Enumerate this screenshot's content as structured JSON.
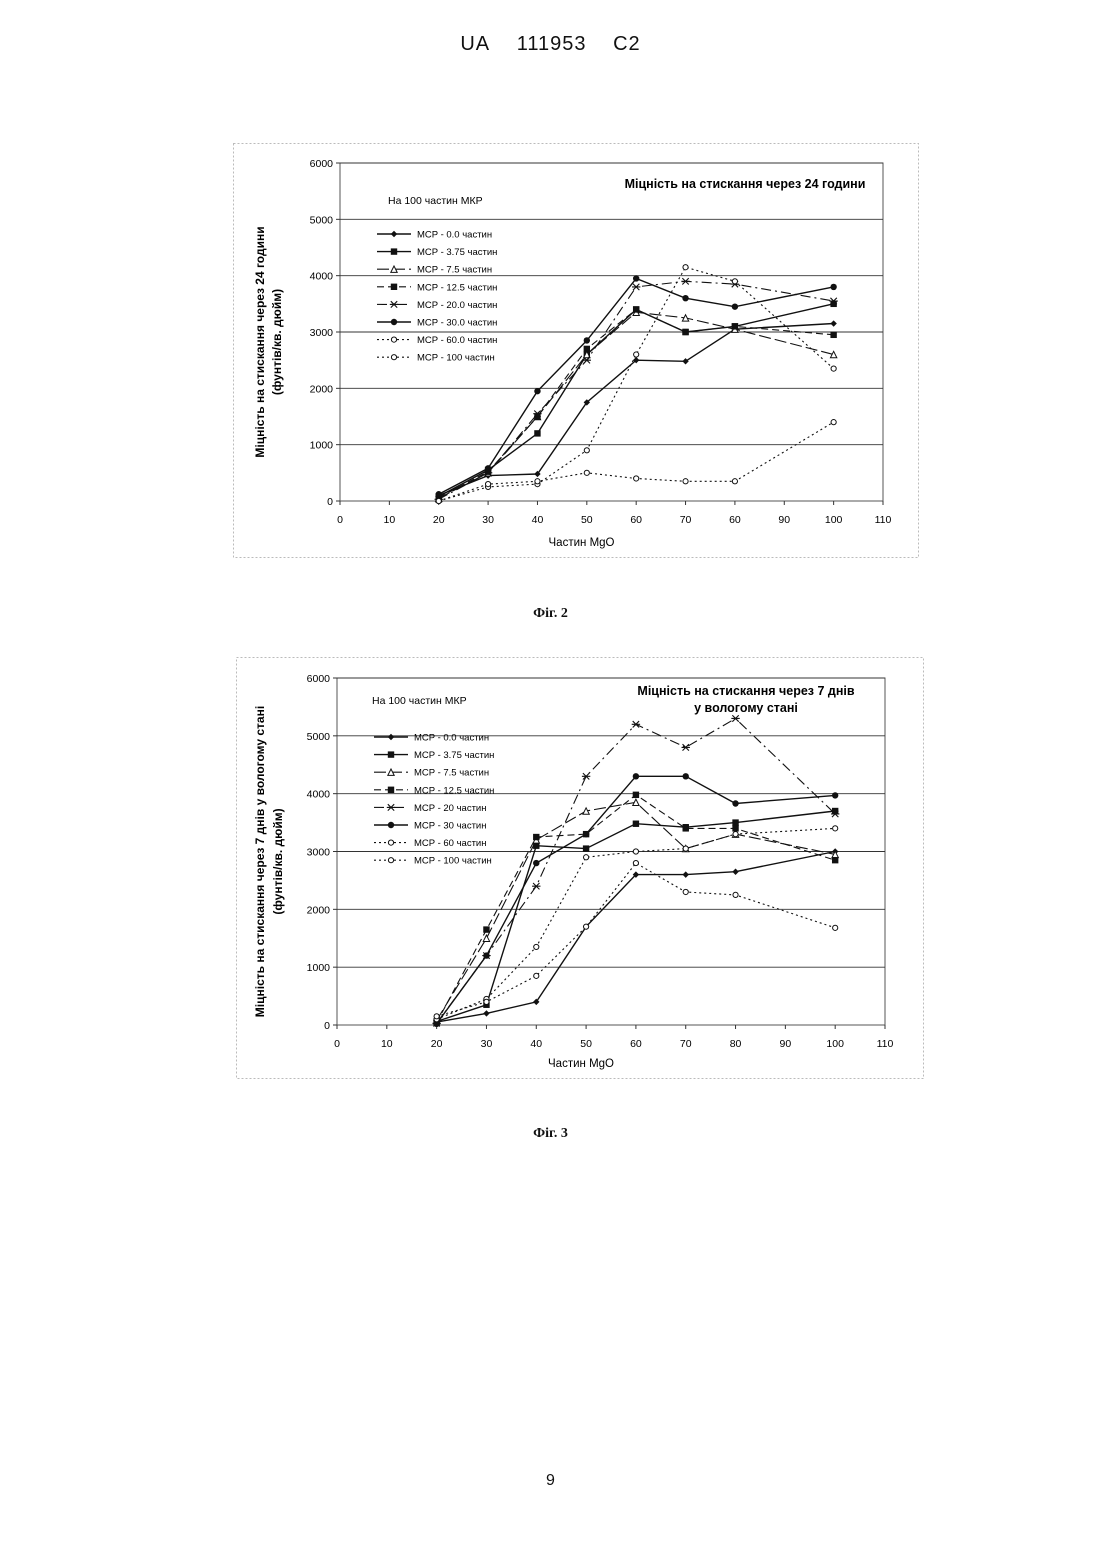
{
  "header": {
    "country": "UA",
    "number": "111953",
    "kind": "C2"
  },
  "figures": [
    {
      "caption": "Фіг. 2"
    },
    {
      "caption": "Фіг. 3"
    }
  ],
  "page_number": "9",
  "chart_data": [
    {
      "type": "line",
      "title": "Міцність на стискання через 24 години",
      "subtitle": "На 100 частин МКР",
      "xlabel": "Частин MgO",
      "ylabel_line1": "Міцність на стискання через 24 години",
      "ylabel_line2": "(фунтів/кв. дюйм)",
      "xlim": [
        0,
        110
      ],
      "ylim": [
        0,
        6000
      ],
      "x_ticks": [
        "0",
        "10",
        "20",
        "30",
        "40",
        "50",
        "60",
        "70",
        "60",
        "90",
        "100",
        "110"
      ],
      "y_ticks": [
        "0",
        "1000",
        "2000",
        "3000",
        "4000",
        "5000",
        "6000"
      ],
      "grid": "horizontal",
      "legend_position": "top-left",
      "series": [
        {
          "name": "MCP - 0.0 частин",
          "marker": "diamond",
          "dash": "solid",
          "x": [
            20,
            30,
            40,
            50,
            60,
            70,
            80,
            100
          ],
          "y": [
            100,
            450,
            480,
            1750,
            2500,
            2480,
            3050,
            3150
          ]
        },
        {
          "name": "MCP - 3.75 частин",
          "marker": "square",
          "dash": "solid",
          "x": [
            20,
            30,
            40,
            50,
            60,
            70,
            80,
            100
          ],
          "y": [
            80,
            550,
            1200,
            2600,
            3400,
            3000,
            3100,
            3500
          ]
        },
        {
          "name": "MCP - 7.5 частин",
          "marker": "triangle",
          "dash": "long",
          "x": [
            20,
            30,
            40,
            50,
            60,
            70,
            80,
            100
          ],
          "y": [
            50,
            500,
            1500,
            2600,
            3350,
            3250,
            3050,
            2600
          ]
        },
        {
          "name": "MCP - 12.5 частин",
          "marker": "square-filled",
          "dash": "dash",
          "x": [
            20,
            30,
            40,
            50,
            60,
            70,
            80,
            100
          ],
          "y": [
            60,
            520,
            1500,
            2700,
            3400,
            3000,
            3100,
            2950
          ]
        },
        {
          "name": "MCP - 20.0 частин",
          "marker": "star",
          "dash": "dashdot",
          "x": [
            20,
            30,
            40,
            50,
            60,
            70,
            80,
            100
          ],
          "y": [
            30,
            500,
            1550,
            2500,
            3800,
            3900,
            3850,
            3550
          ]
        },
        {
          "name": "MCP - 30.0 частин",
          "marker": "circle",
          "dash": "solid",
          "x": [
            20,
            30,
            40,
            50,
            60,
            70,
            80,
            100
          ],
          "y": [
            120,
            580,
            1950,
            2850,
            3950,
            3600,
            3450,
            3800
          ]
        },
        {
          "name": "MCP - 60.0 частин",
          "marker": "open-circle",
          "dash": "dot",
          "x": [
            20,
            30,
            40,
            50,
            60,
            70,
            80,
            100
          ],
          "y": [
            0,
            250,
            300,
            900,
            2600,
            4150,
            3900,
            2350
          ]
        },
        {
          "name": "MCP - 100 частин",
          "marker": "open-circle",
          "dash": "dot",
          "x": [
            20,
            30,
            40,
            50,
            60,
            70,
            80,
            100
          ],
          "y": [
            0,
            300,
            350,
            500,
            400,
            350,
            350,
            1400
          ]
        }
      ]
    },
    {
      "type": "line",
      "title": "Міцність на стискання через 7 днів",
      "title_line2": "у вологому стані",
      "subtitle": "На 100 частин МКР",
      "xlabel": "Частин  MgO",
      "ylabel_line1": "Міцність на стискання через 7 днів у вологому стані",
      "ylabel_line2": "(фунтів/кв. дюйм)",
      "xlim": [
        0,
        110
      ],
      "ylim": [
        0,
        6000
      ],
      "x_ticks": [
        "0",
        "10",
        "20",
        "30",
        "40",
        "50",
        "60",
        "70",
        "80",
        "90",
        "100",
        "110"
      ],
      "y_ticks": [
        "0",
        "1000",
        "2000",
        "3000",
        "4000",
        "5000",
        "6000"
      ],
      "grid": "horizontal",
      "legend_position": "top-left",
      "series": [
        {
          "name": "MCP - 0.0 частин",
          "marker": "diamond",
          "dash": "solid",
          "x": [
            20,
            30,
            40,
            50,
            60,
            70,
            80,
            100
          ],
          "y": [
            50,
            200,
            400,
            1700,
            2600,
            2600,
            2650,
            3000
          ]
        },
        {
          "name": "MCP - 3.75 частин",
          "marker": "square",
          "dash": "solid",
          "x": [
            20,
            30,
            40,
            50,
            60,
            70,
            80,
            100
          ],
          "y": [
            60,
            350,
            3100,
            3050,
            3480,
            3420,
            3500,
            3700
          ]
        },
        {
          "name": "MCP - 7.5 частин",
          "marker": "triangle",
          "dash": "long",
          "x": [
            20,
            30,
            40,
            50,
            60,
            70,
            80,
            100
          ],
          "y": [
            80,
            1500,
            3200,
            3700,
            3850,
            3050,
            3300,
            2950
          ]
        },
        {
          "name": "MCP - 12.5 частин",
          "marker": "square-filled",
          "dash": "dash",
          "x": [
            20,
            30,
            40,
            50,
            60,
            70,
            80,
            100
          ],
          "y": [
            40,
            1650,
            3250,
            3300,
            3980,
            3400,
            3400,
            2850
          ]
        },
        {
          "name": "MCP - 20 частин",
          "marker": "star",
          "dash": "dashdot",
          "x": [
            20,
            30,
            40,
            50,
            60,
            70,
            80,
            100
          ],
          "y": [
            30,
            1200,
            2400,
            4300,
            5200,
            4800,
            5300,
            3650
          ]
        },
        {
          "name": "MCP - 30 частин",
          "marker": "circle",
          "dash": "solid",
          "x": [
            20,
            30,
            40,
            50,
            60,
            70,
            80,
            100
          ],
          "y": [
            20,
            1200,
            2800,
            3300,
            4300,
            4300,
            3830,
            3970
          ]
        },
        {
          "name": "MCP - 60 частин",
          "marker": "open-circle",
          "dash": "dot",
          "x": [
            20,
            30,
            40,
            50,
            60,
            70,
            80,
            100
          ],
          "y": [
            100,
            450,
            1350,
            2900,
            3000,
            3050,
            3300,
            3400
          ]
        },
        {
          "name": "MCP - 100 частин",
          "marker": "open-circle",
          "dash": "dot",
          "x": [
            20,
            30,
            40,
            50,
            60,
            70,
            80,
            100
          ],
          "y": [
            150,
            400,
            850,
            1700,
            2800,
            2300,
            2250,
            1680
          ]
        }
      ]
    }
  ]
}
